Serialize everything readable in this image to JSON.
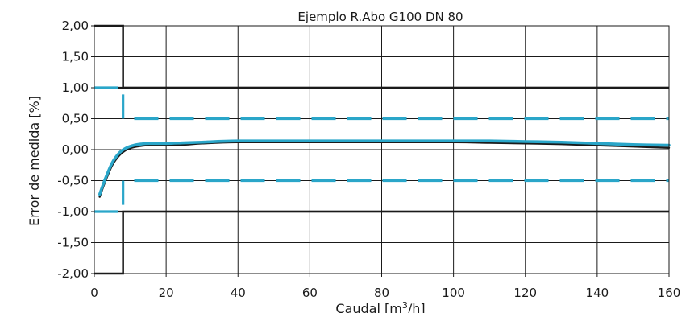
{
  "chart_data": {
    "type": "line",
    "title": "Ejemplo R.Abo G100 DN 80",
    "xlabel_main": "Caudal [m",
    "xlabel_sup": "3",
    "xlabel_end": "/h]",
    "ylabel": "Error de medida [%]",
    "xlim": [
      0,
      160
    ],
    "ylim": [
      -2,
      2
    ],
    "x_ticks": [
      0,
      20,
      40,
      60,
      80,
      100,
      120,
      140,
      160
    ],
    "x_tick_labels": [
      "0",
      "20",
      "40",
      "60",
      "80",
      "100",
      "120",
      "140",
      "160"
    ],
    "y_ticks": [
      2,
      1.5,
      1,
      0.5,
      0,
      -0.5,
      -1,
      -1.5,
      -2
    ],
    "y_tick_labels": [
      "2,00",
      "1,50",
      "1,00",
      "0,50",
      "0,00",
      "-0,50",
      "-1,00",
      "-1,50",
      "-2,00"
    ],
    "grid": true,
    "limits": {
      "solid": {
        "color": "#1a1a1a",
        "points": [
          [
            0,
            2
          ],
          [
            8,
            2
          ],
          [
            8,
            1
          ],
          [
            160,
            1
          ]
        ],
        "mirror": true
      },
      "dashed": {
        "color": "#2aa6c9",
        "points": [
          [
            0,
            1
          ],
          [
            8,
            1
          ],
          [
            8,
            0.5
          ],
          [
            160,
            0.5
          ]
        ],
        "mirror": true
      }
    },
    "series": [
      {
        "color": "#1a1a1a",
        "x": [
          1.5,
          3,
          5,
          7,
          9,
          11,
          13,
          15,
          20,
          25,
          30,
          40,
          60,
          80,
          100,
          110,
          120,
          130,
          140,
          150,
          160
        ],
        "y": [
          -0.76,
          -0.52,
          -0.25,
          -0.09,
          0.0,
          0.04,
          0.06,
          0.07,
          0.07,
          0.08,
          0.1,
          0.12,
          0.12,
          0.12,
          0.12,
          0.11,
          0.1,
          0.09,
          0.07,
          0.05,
          0.03
        ]
      },
      {
        "color": "#2aa6c9",
        "x": [
          1.5,
          3,
          5,
          7,
          9,
          11,
          13,
          15,
          20,
          25,
          30,
          40,
          60,
          80,
          100,
          110,
          120,
          130,
          140,
          150,
          160
        ],
        "y": [
          -0.72,
          -0.48,
          -0.21,
          -0.05,
          0.03,
          0.07,
          0.09,
          0.1,
          0.1,
          0.11,
          0.12,
          0.14,
          0.14,
          0.14,
          0.14,
          0.14,
          0.13,
          0.12,
          0.1,
          0.08,
          0.07
        ]
      }
    ]
  }
}
